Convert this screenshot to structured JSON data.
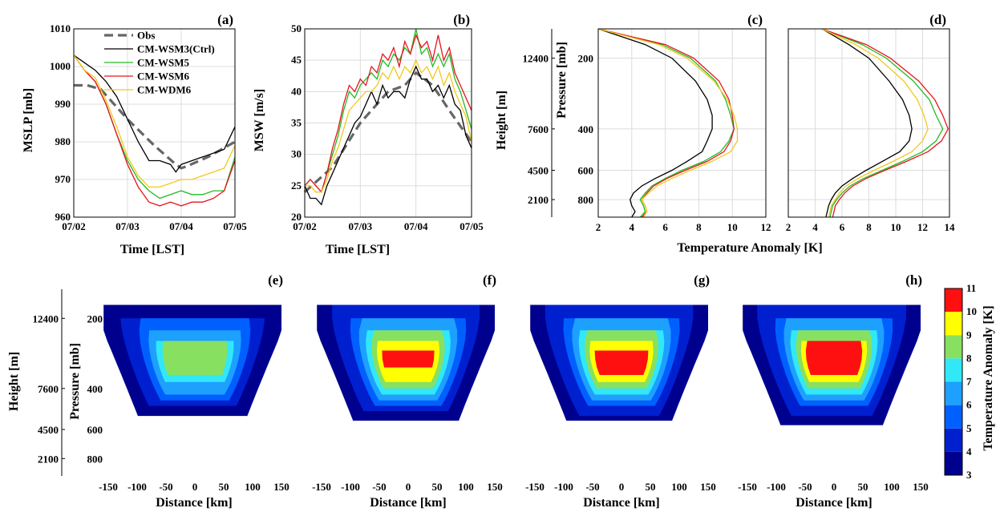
{
  "colors": {
    "obs": "#666666",
    "wsm3": "#000000",
    "wsm5": "#22bb22",
    "wsm6": "#e8141e",
    "wdm6": "#f2c81e",
    "contour_levels": [
      "#00008f",
      "#0020d0",
      "#0060ff",
      "#1ea0ff",
      "#30e8f8",
      "#88e060",
      "#ffff00",
      "#ff1010",
      "#800000"
    ]
  },
  "panel_labels": [
    "(a)",
    "(b)",
    "(c)",
    "(d)",
    "(e)",
    "(f)",
    "(g)",
    "(h)"
  ],
  "shared": {
    "time_xlabel": "Time [LST]",
    "temp_xlabel": "Temperature Anomaly [K]",
    "height_label": "Height [m]",
    "pressure_label": "Pressure [mb]",
    "distance_label": "Distance [km]",
    "colorbar_label": "Temperature Anomaly [K]",
    "colorbar_ticks": [
      "3",
      "4",
      "5",
      "6",
      "7",
      "8",
      "9",
      "10",
      "11"
    ],
    "height_ticks": [
      "12400",
      "7600",
      "4500",
      "2100"
    ],
    "pressure_ticks": [
      "200",
      "400",
      "600",
      "800"
    ]
  },
  "chart_data": [
    {
      "type": "line",
      "panel": "(a)",
      "ylabel": "MSLP [mb]",
      "xlabel": "Time [LST]",
      "xlim": [
        0,
        3
      ],
      "ylim": [
        960,
        1010
      ],
      "xticks": [
        "07/02",
        "07/03",
        "07/04",
        "07/05"
      ],
      "yticks": [
        960,
        970,
        980,
        990,
        1000,
        1010
      ],
      "grid": true,
      "legend_position": "top-left",
      "series": [
        {
          "name": "Obs",
          "color_key": "obs",
          "dashed": true,
          "x": [
            0,
            0.25,
            0.5,
            1.0,
            1.5,
            1.9,
            2.0,
            2.1,
            2.5,
            3.0
          ],
          "y": [
            995,
            995,
            994,
            986,
            979,
            974,
            973,
            973.5,
            976,
            980
          ]
        },
        {
          "name": "CM-WSM3(Ctrl)",
          "color_key": "wsm3",
          "x": [
            0,
            0.2,
            0.4,
            0.6,
            0.8,
            1.0,
            1.2,
            1.4,
            1.6,
            1.8,
            1.9,
            2.0,
            2.2,
            2.4,
            2.6,
            2.8,
            3.0
          ],
          "y": [
            1003,
            1001,
            999,
            996,
            992,
            986,
            980,
            975,
            975,
            974,
            972,
            974,
            975,
            976,
            977,
            978,
            984
          ]
        },
        {
          "name": "CM-WSM5",
          "color_key": "wsm5",
          "x": [
            0,
            0.2,
            0.4,
            0.6,
            0.8,
            1.0,
            1.2,
            1.4,
            1.6,
            1.8,
            2.0,
            2.2,
            2.4,
            2.6,
            2.8,
            3.0
          ],
          "y": [
            1003,
            999,
            996,
            990,
            982,
            975,
            970,
            967,
            965,
            966,
            967,
            966,
            966,
            967,
            967,
            976
          ]
        },
        {
          "name": "CM-WSM6",
          "color_key": "wsm6",
          "x": [
            0,
            0.2,
            0.4,
            0.6,
            0.8,
            1.0,
            1.2,
            1.4,
            1.6,
            1.8,
            2.0,
            2.2,
            2.4,
            2.6,
            2.8,
            3.0
          ],
          "y": [
            1003,
            999,
            996,
            990,
            982,
            974,
            968,
            964,
            963,
            964,
            963,
            964,
            964,
            965,
            967,
            975
          ]
        },
        {
          "name": "CM-WDM6",
          "color_key": "wdm6",
          "x": [
            0,
            0.2,
            0.4,
            0.6,
            0.8,
            1.0,
            1.2,
            1.4,
            1.6,
            1.8,
            2.0,
            2.2,
            2.4,
            2.6,
            2.8,
            3.0
          ],
          "y": [
            1003,
            999,
            997,
            991,
            984,
            976,
            971,
            968,
            968,
            969,
            970,
            970,
            971,
            972,
            973,
            979
          ]
        }
      ]
    },
    {
      "type": "line",
      "panel": "(b)",
      "ylabel": "MSW [m/s]",
      "xlabel": "Time [LST]",
      "xlim": [
        0,
        3
      ],
      "ylim": [
        20,
        50
      ],
      "xticks": [
        "07/02",
        "07/03",
        "07/04",
        "07/05"
      ],
      "yticks": [
        20,
        25,
        30,
        35,
        40,
        45,
        50
      ],
      "grid": true,
      "series": [
        {
          "name": "Obs",
          "color_key": "obs",
          "dashed": true,
          "x": [
            0,
            0.5,
            1.0,
            1.5,
            1.8,
            2.0,
            2.3,
            2.6,
            3.0
          ],
          "y": [
            24,
            28,
            35,
            40,
            41,
            43,
            41,
            37,
            32
          ]
        },
        {
          "name": "CM-WSM3(Ctrl)",
          "color_key": "wsm3",
          "x": [
            0,
            0.1,
            0.2,
            0.3,
            0.4,
            0.5,
            0.6,
            0.7,
            0.8,
            0.9,
            1.0,
            1.1,
            1.2,
            1.3,
            1.4,
            1.5,
            1.6,
            1.7,
            1.8,
            1.9,
            2.0,
            2.1,
            2.2,
            2.3,
            2.4,
            2.5,
            2.6,
            2.7,
            2.8,
            2.9,
            3.0
          ],
          "y": [
            25,
            23,
            23,
            22,
            25,
            27,
            29,
            31,
            33,
            35,
            36,
            38,
            40,
            38,
            41,
            39,
            40,
            40,
            39,
            42,
            44,
            42,
            42,
            40,
            41,
            39,
            41,
            38,
            37,
            33,
            31
          ]
        },
        {
          "name": "CM-WSM5",
          "color_key": "wsm5",
          "x": [
            0,
            0.1,
            0.2,
            0.3,
            0.4,
            0.5,
            0.6,
            0.7,
            0.8,
            0.9,
            1.0,
            1.1,
            1.2,
            1.3,
            1.4,
            1.5,
            1.6,
            1.7,
            1.8,
            1.9,
            2.0,
            2.1,
            2.2,
            2.3,
            2.4,
            2.5,
            2.6,
            2.7,
            2.8,
            2.9,
            3.0
          ],
          "y": [
            25,
            26,
            25,
            24,
            27,
            30,
            33,
            37,
            40,
            39,
            41,
            42,
            43,
            42,
            45,
            44,
            46,
            45,
            47,
            46,
            50,
            46,
            47,
            44,
            46,
            44,
            46,
            42,
            40,
            37,
            34
          ]
        },
        {
          "name": "CM-WSM6",
          "color_key": "wsm6",
          "x": [
            0,
            0.1,
            0.2,
            0.3,
            0.4,
            0.5,
            0.6,
            0.7,
            0.8,
            0.9,
            1.0,
            1.1,
            1.2,
            1.3,
            1.4,
            1.5,
            1.6,
            1.7,
            1.8,
            1.9,
            2.0,
            2.1,
            2.2,
            2.3,
            2.4,
            2.5,
            2.6,
            2.7,
            2.8,
            2.9,
            3.0
          ],
          "y": [
            25,
            26,
            25,
            24,
            27,
            31,
            34,
            38,
            41,
            40,
            42,
            41,
            44,
            43,
            46,
            45,
            47,
            44,
            48,
            46,
            49,
            47,
            48,
            45,
            49,
            45,
            47,
            43,
            41,
            39,
            37
          ]
        },
        {
          "name": "CM-WDM6",
          "color_key": "wdm6",
          "x": [
            0,
            0.1,
            0.2,
            0.3,
            0.4,
            0.5,
            0.6,
            0.7,
            0.8,
            0.9,
            1.0,
            1.1,
            1.2,
            1.3,
            1.4,
            1.5,
            1.6,
            1.7,
            1.8,
            1.9,
            2.0,
            2.1,
            2.2,
            2.3,
            2.4,
            2.5,
            2.6,
            2.7,
            2.8,
            2.9,
            3.0
          ],
          "y": [
            25,
            25,
            24,
            24,
            26,
            29,
            31,
            34,
            37,
            38,
            39,
            40,
            40,
            41,
            43,
            42,
            44,
            42,
            44,
            43,
            45,
            43,
            44,
            42,
            44,
            41,
            43,
            40,
            38,
            36,
            32
          ]
        }
      ]
    },
    {
      "type": "line",
      "panel": "(c)",
      "xlabel": "",
      "xlim": [
        2,
        12
      ],
      "ylim": [
        950,
        150
      ],
      "xticks": [
        2,
        4,
        6,
        8,
        10,
        12
      ],
      "yticks_pressure": [
        200,
        400,
        600,
        800
      ],
      "grid": true,
      "series": [
        {
          "name": "CM-WSM3(Ctrl)",
          "color_key": "wsm3",
          "p": [
            150,
            175,
            200,
            250,
            300,
            350,
            400,
            450,
            500,
            550,
            600,
            650,
            700,
            750,
            800,
            850,
            900,
            950
          ],
          "t": [
            2.0,
            4.8,
            6.4,
            7.8,
            8.5,
            8.8,
            8.8,
            8.5,
            8.2,
            7.3,
            6.4,
            5.4,
            4.6,
            4.1,
            3.9,
            4.0,
            4.2,
            4.0
          ]
        },
        {
          "name": "CM-WSM5",
          "color_key": "wsm5",
          "p": [
            150,
            175,
            200,
            250,
            300,
            350,
            400,
            450,
            500,
            550,
            600,
            650,
            700,
            750,
            800,
            850,
            900,
            950
          ],
          "t": [
            2.0,
            5.8,
            7.5,
            9.0,
            9.6,
            9.9,
            10.1,
            9.8,
            9.3,
            8.3,
            7.0,
            6.0,
            5.2,
            4.8,
            4.5,
            4.7,
            4.8,
            4.5
          ]
        },
        {
          "name": "CM-WSM6",
          "color_key": "wsm6",
          "p": [
            150,
            175,
            200,
            250,
            300,
            350,
            400,
            450,
            500,
            550,
            600,
            650,
            700,
            750,
            800,
            850,
            900,
            950
          ],
          "t": [
            2.0,
            6.0,
            7.7,
            9.2,
            9.8,
            10.0,
            10.1,
            9.9,
            9.5,
            8.5,
            7.2,
            6.1,
            5.3,
            4.9,
            4.6,
            4.8,
            4.9,
            4.6
          ]
        },
        {
          "name": "CM-WDM6",
          "color_key": "wdm6",
          "p": [
            150,
            175,
            200,
            250,
            300,
            350,
            400,
            450,
            500,
            550,
            600,
            650,
            700,
            750,
            800,
            850,
            900,
            950
          ],
          "t": [
            2.0,
            5.6,
            7.3,
            8.9,
            9.7,
            10.1,
            10.3,
            10.3,
            9.9,
            8.8,
            7.5,
            6.4,
            5.5,
            5.0,
            4.6,
            4.8,
            4.9,
            4.7
          ]
        }
      ]
    },
    {
      "type": "line",
      "panel": "(d)",
      "xlabel": "Temperature Anomaly [K]",
      "xlim": [
        2,
        14
      ],
      "ylim": [
        950,
        150
      ],
      "xticks": [
        2,
        4,
        6,
        8,
        10,
        12,
        14
      ],
      "grid": true,
      "series": [
        {
          "name": "CM-WSM3(Ctrl)",
          "color_key": "wsm3",
          "p": [
            150,
            175,
            200,
            250,
            300,
            350,
            400,
            450,
            500,
            550,
            600,
            650,
            700,
            750,
            800,
            850,
            900,
            950
          ],
          "t": [
            4.5,
            6.5,
            8.0,
            9.5,
            10.5,
            11.0,
            11.2,
            11.0,
            10.3,
            9.0,
            7.8,
            6.8,
            6.0,
            5.5,
            5.2,
            5.0,
            4.9,
            4.8
          ]
        },
        {
          "name": "CM-WSM5",
          "color_key": "wsm5",
          "p": [
            150,
            175,
            200,
            250,
            300,
            350,
            400,
            450,
            500,
            550,
            600,
            650,
            700,
            750,
            800,
            850,
            900,
            950
          ],
          "t": [
            4.5,
            7.5,
            9.3,
            11.3,
            12.5,
            13.0,
            13.5,
            13.0,
            12.0,
            10.5,
            9.0,
            7.6,
            6.6,
            6.0,
            5.6,
            5.3,
            5.2,
            5.1
          ]
        },
        {
          "name": "CM-WSM6",
          "color_key": "wsm6",
          "p": [
            150,
            175,
            200,
            250,
            300,
            350,
            400,
            450,
            500,
            550,
            600,
            650,
            700,
            750,
            800,
            850,
            900,
            950
          ],
          "t": [
            4.5,
            7.8,
            9.6,
            11.7,
            12.9,
            13.5,
            13.9,
            13.4,
            12.4,
            10.8,
            9.2,
            7.8,
            6.8,
            6.2,
            5.8,
            5.5,
            5.4,
            5.3
          ]
        },
        {
          "name": "CM-WDM6",
          "color_key": "wdm6",
          "p": [
            150,
            175,
            200,
            250,
            300,
            350,
            400,
            450,
            500,
            550,
            600,
            650,
            700,
            750,
            800,
            850,
            900,
            950
          ],
          "t": [
            4.5,
            7.0,
            8.7,
            10.6,
            11.6,
            12.1,
            12.4,
            12.0,
            11.2,
            9.8,
            8.4,
            7.2,
            6.3,
            5.8,
            5.5,
            5.2,
            5.1,
            5.0
          ]
        }
      ]
    },
    {
      "type": "heatmap",
      "panel": "(e)",
      "xlim": [
        -150,
        150
      ],
      "xticks": [
        -150,
        -100,
        -50,
        0,
        50,
        100,
        150
      ],
      "ylim": [
        950,
        150
      ],
      "max_anomaly": 8.6,
      "levels": [
        3,
        4,
        5,
        6,
        7,
        8,
        9,
        10,
        11
      ]
    },
    {
      "type": "heatmap",
      "panel": "(f)",
      "xlim": [
        -150,
        150
      ],
      "xticks": [
        -150,
        -100,
        -50,
        0,
        50,
        100,
        150
      ],
      "ylim": [
        950,
        150
      ],
      "max_anomaly": 10.2,
      "levels": [
        3,
        4,
        5,
        6,
        7,
        8,
        9,
        10,
        11
      ]
    },
    {
      "type": "heatmap",
      "panel": "(g)",
      "xlim": [
        -150,
        150
      ],
      "xticks": [
        -150,
        -100,
        -50,
        0,
        50,
        100,
        150
      ],
      "ylim": [
        950,
        150
      ],
      "max_anomaly": 10.4,
      "levels": [
        3,
        4,
        5,
        6,
        7,
        8,
        9,
        10,
        11
      ]
    },
    {
      "type": "heatmap",
      "panel": "(h)",
      "xlim": [
        -150,
        150
      ],
      "xticks": [
        -150,
        -100,
        -50,
        0,
        50,
        100,
        150
      ],
      "ylim": [
        950,
        150
      ],
      "max_anomaly": 10.9,
      "levels": [
        3,
        4,
        5,
        6,
        7,
        8,
        9,
        10,
        11
      ]
    }
  ]
}
